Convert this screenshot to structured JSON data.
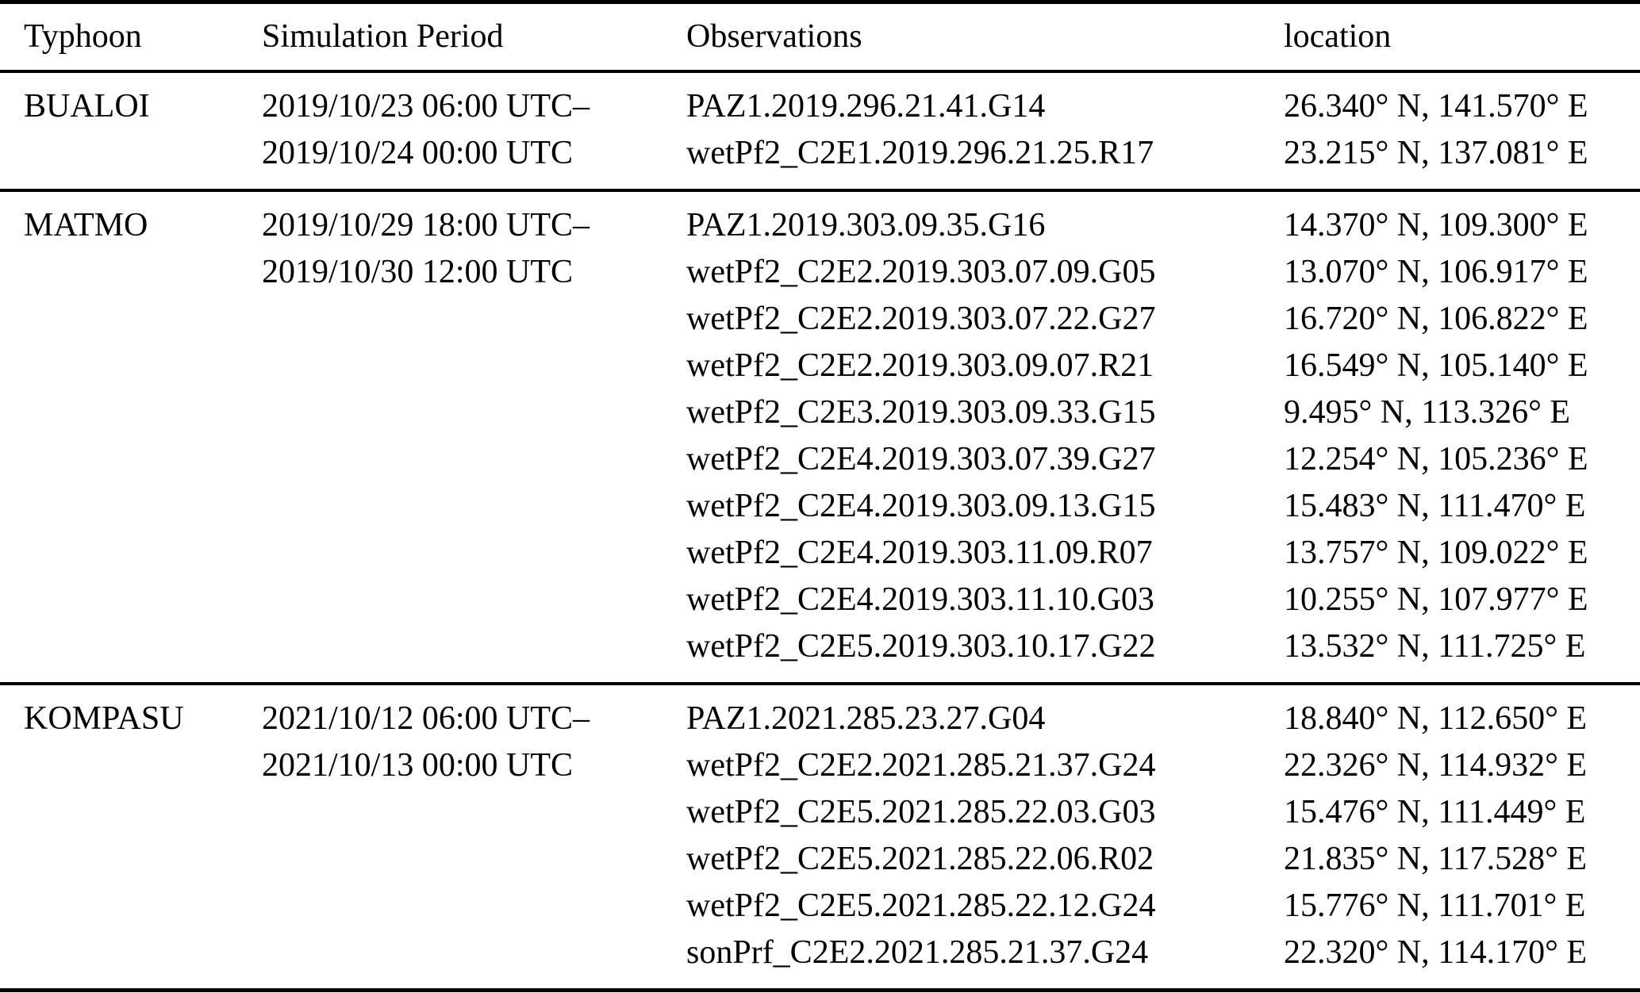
{
  "table": {
    "columns": [
      "Typhoon",
      "Simulation Period",
      "Observations",
      "location"
    ],
    "rows": [
      {
        "typhoon": "BUALOI",
        "period": [
          "2019/10/23 06:00 UTC–",
          "2019/10/24 00:00 UTC"
        ],
        "observations": [
          "PAZ1.2019.296.21.41.G14",
          "wetPf2_C2E1.2019.296.21.25.R17"
        ],
        "locations": [
          "26.340° N, 141.570° E",
          "23.215° N, 137.081° E"
        ]
      },
      {
        "typhoon": "MATMO",
        "period": [
          "2019/10/29 18:00 UTC–",
          "2019/10/30 12:00 UTC"
        ],
        "observations": [
          "PAZ1.2019.303.09.35.G16",
          "wetPf2_C2E2.2019.303.07.09.G05",
          "wetPf2_C2E2.2019.303.07.22.G27",
          "wetPf2_C2E2.2019.303.09.07.R21",
          "wetPf2_C2E3.2019.303.09.33.G15",
          "wetPf2_C2E4.2019.303.07.39.G27",
          "wetPf2_C2E4.2019.303.09.13.G15",
          "wetPf2_C2E4.2019.303.11.09.R07",
          "wetPf2_C2E4.2019.303.11.10.G03",
          "wetPf2_C2E5.2019.303.10.17.G22"
        ],
        "locations": [
          "14.370° N, 109.300° E",
          "13.070° N, 106.917° E",
          "16.720° N, 106.822° E",
          "16.549° N, 105.140° E",
          "9.495° N, 113.326° E",
          "12.254° N, 105.236° E",
          "15.483° N, 111.470° E",
          "13.757° N, 109.022° E",
          "10.255° N, 107.977° E",
          "13.532° N, 111.725° E"
        ]
      },
      {
        "typhoon": "KOMPASU",
        "period": [
          "2021/10/12 06:00 UTC–",
          "2021/10/13 00:00 UTC"
        ],
        "observations": [
          "PAZ1.2021.285.23.27.G04",
          "wetPf2_C2E2.2021.285.21.37.G24",
          "wetPf2_C2E5.2021.285.22.03.G03",
          "wetPf2_C2E5.2021.285.22.06.R02",
          "wetPf2_C2E5.2021.285.22.12.G24",
          "sonPrf_C2E2.2021.285.21.37.G24"
        ],
        "locations": [
          "18.840° N, 112.650° E",
          "22.326° N, 114.932° E",
          "15.476° N, 111.449° E",
          "21.835° N, 117.528° E",
          "15.776° N, 111.701° E",
          "22.320° N, 114.170° E"
        ]
      }
    ]
  }
}
